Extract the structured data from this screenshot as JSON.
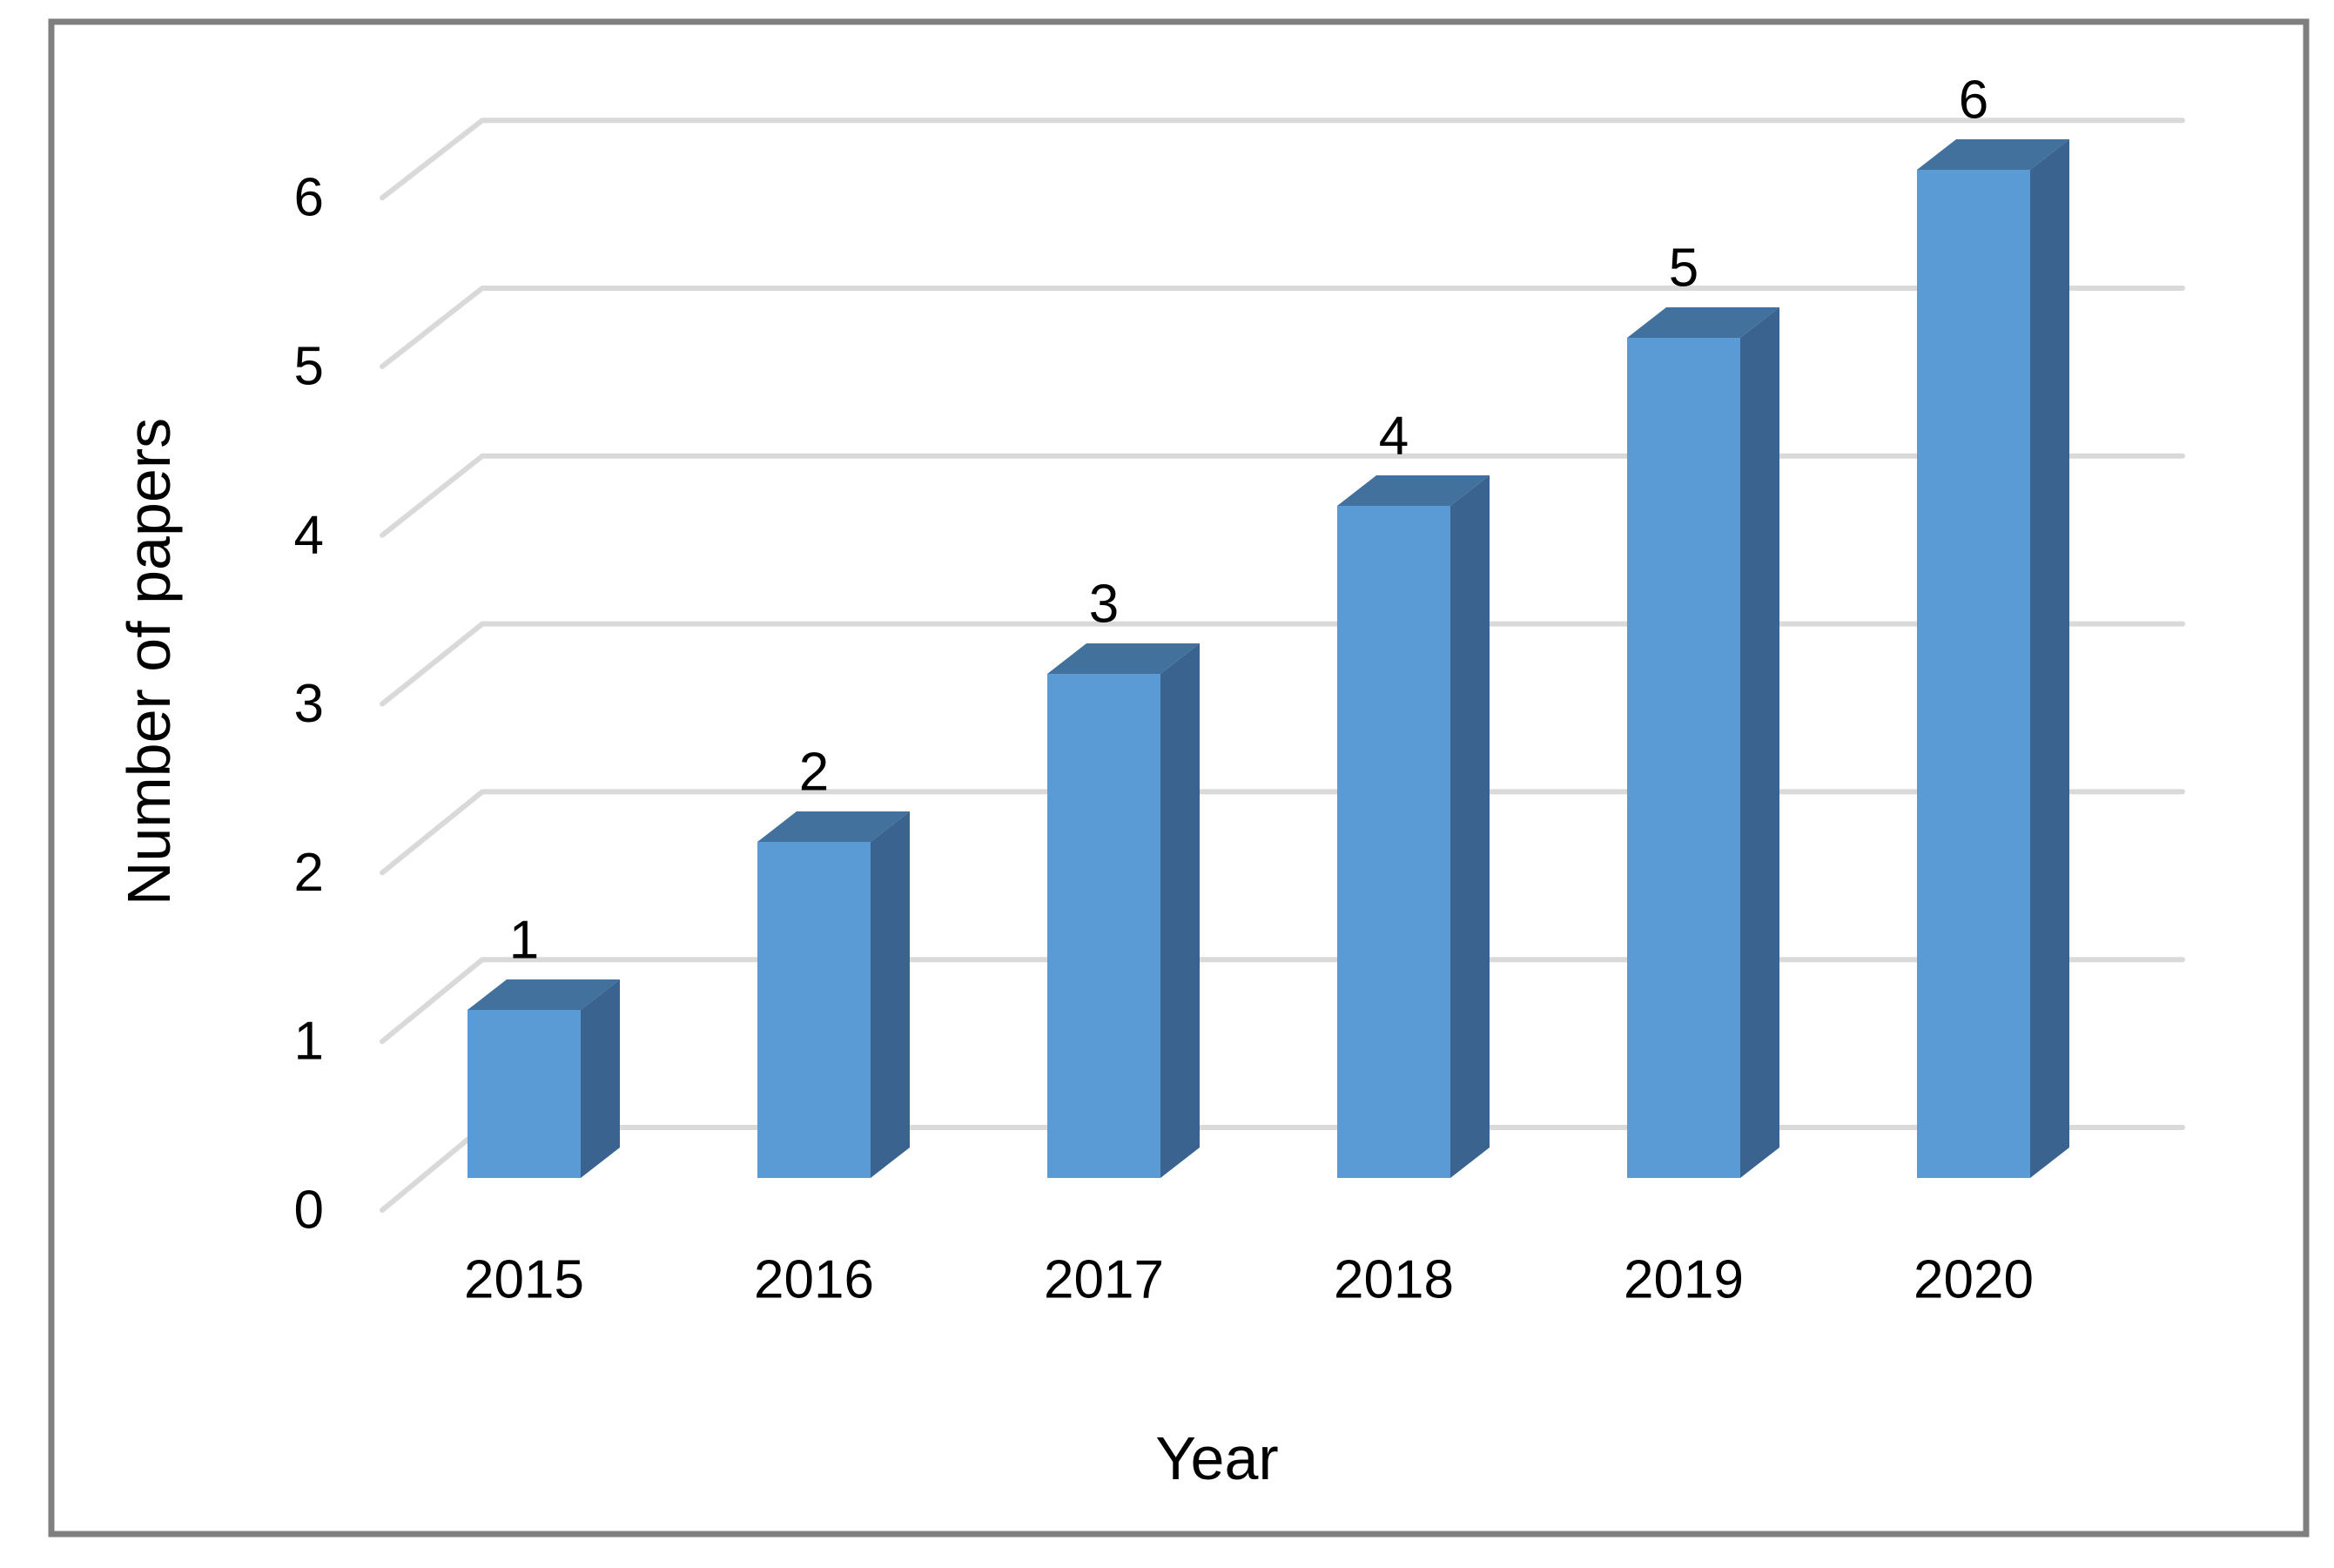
{
  "chart_data": {
    "type": "bar",
    "variant": "3d-column",
    "title": "",
    "xlabel": "Year",
    "ylabel": "Number of papers",
    "categories": [
      "2015",
      "2016",
      "2017",
      "2018",
      "2019",
      "2020"
    ],
    "values": [
      1,
      2,
      3,
      4,
      5,
      6
    ],
    "data_labels": [
      "1",
      "2",
      "3",
      "4",
      "5",
      "6"
    ],
    "y_ticks": [
      0,
      1,
      2,
      3,
      4,
      5,
      6
    ],
    "ylim": [
      0,
      6
    ],
    "grid": "horizontal-3d",
    "legend": "none",
    "colors": {
      "bar_front": "#5B9BD5",
      "bar_top": "#41719C",
      "bar_side": "#3A648F",
      "gridline": "#D9D9D9",
      "frame_border": "#7F7F7F",
      "text": "#000000",
      "background": "#FFFFFF"
    }
  }
}
